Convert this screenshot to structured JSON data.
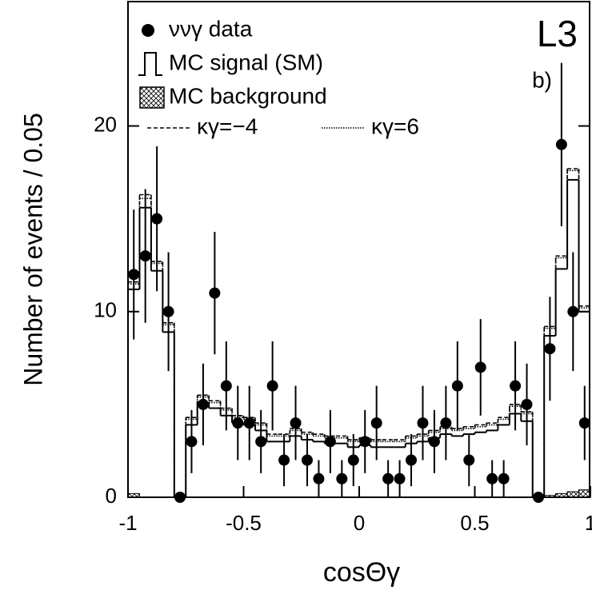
{
  "chart_data": {
    "type": "histogram",
    "xlabel": "cosΘγ",
    "ylabel": "Number of events / 0.05",
    "annotations": [
      "L3",
      "b)"
    ],
    "bins": [
      -1,
      -0.95,
      -0.9,
      -0.85,
      -0.8,
      -0.75,
      -0.7,
      -0.65,
      -0.6,
      -0.55,
      -0.5,
      -0.45,
      -0.4,
      -0.35,
      -0.3,
      -0.25,
      -0.2,
      -0.15,
      -0.1,
      -0.05,
      0,
      0.05,
      0.1,
      0.15,
      0.2,
      0.25,
      0.3,
      0.35,
      0.4,
      0.45,
      0.5,
      0.55,
      0.6,
      0.65,
      0.7,
      0.75,
      0.8,
      0.85,
      0.9,
      0.95,
      1
    ],
    "xlim": [
      -1,
      1
    ],
    "ylim": [
      0,
      26.7
    ],
    "xticks": [
      -1,
      -0.5,
      0,
      0.5,
      1
    ],
    "yticks": [
      0,
      10,
      20
    ],
    "series": [
      {
        "name": "ννγ data",
        "style": "points",
        "color": "#000000",
        "values": [
          12,
          13,
          15,
          10,
          0,
          3,
          5,
          11,
          6,
          4,
          4,
          3,
          6,
          2,
          4,
          2,
          1,
          3,
          1,
          2,
          3,
          4,
          1,
          1,
          2,
          4,
          3,
          4,
          6,
          2,
          7,
          1,
          1,
          6,
          5,
          0,
          8,
          19,
          10,
          4
        ],
        "errors": [
          3.5,
          3.6,
          3.9,
          3.2,
          0,
          1.7,
          2.2,
          3.3,
          2.4,
          2,
          2,
          1.7,
          2.4,
          1.4,
          2,
          1.4,
          1,
          1.7,
          1,
          1.4,
          1.7,
          2,
          1,
          1,
          1.4,
          2,
          1.7,
          2,
          2.4,
          1.4,
          2.6,
          1,
          1,
          2.4,
          2.2,
          0,
          2.8,
          4.4,
          3.2,
          2
        ]
      },
      {
        "name": "MC signal (SM)",
        "style": "step",
        "color": "#000000",
        "values": [
          11.2,
          15.6,
          12.2,
          8.9,
          0,
          3.9,
          5.1,
          4.8,
          4.4,
          4.0,
          3.9,
          3.6,
          3.0,
          3.0,
          3.3,
          3.1,
          3.0,
          2.9,
          2.9,
          2.7,
          2.8,
          2.7,
          2.7,
          2.7,
          2.9,
          3.0,
          3.2,
          3.4,
          3.3,
          3.4,
          3.5,
          3.6,
          3.9,
          4.5,
          4.1,
          0,
          8.7,
          12.3,
          17.1,
          10.0
        ]
      },
      {
        "name": "MC background",
        "style": "hatched",
        "color": "#000000",
        "values": [
          0.2,
          0,
          0,
          0,
          0,
          0,
          0,
          0,
          0,
          0,
          0,
          0,
          0,
          0,
          0,
          0,
          0,
          0,
          0,
          0,
          0,
          0,
          0,
          0,
          0,
          0,
          0,
          0,
          0,
          0,
          0,
          0,
          0,
          0,
          0,
          0,
          0.1,
          0.2,
          0.3,
          0.4
        ]
      },
      {
        "name": "κγ=−4",
        "style": "dashed",
        "color": "#000000",
        "values": [
          11.6,
          16.3,
          12.7,
          9.4,
          0,
          4.3,
          5.5,
          5.2,
          4.8,
          4.4,
          4.3,
          4.0,
          3.4,
          3.4,
          3.7,
          3.5,
          3.4,
          3.3,
          3.3,
          3.1,
          3.2,
          3.1,
          3.1,
          3.1,
          3.3,
          3.4,
          3.6,
          3.8,
          3.7,
          3.8,
          3.9,
          4.0,
          4.3,
          5.0,
          4.6,
          0,
          9.2,
          13.0,
          17.7,
          10.3
        ]
      },
      {
        "name": "κγ=6",
        "style": "dotted",
        "color": "#000000",
        "values": [
          11.5,
          16.1,
          12.6,
          9.3,
          0,
          4.2,
          5.4,
          5.1,
          4.7,
          4.3,
          4.2,
          3.9,
          3.3,
          3.3,
          3.6,
          3.4,
          3.3,
          3.2,
          3.2,
          3.0,
          3.1,
          3.0,
          3.0,
          3.0,
          3.2,
          3.3,
          3.5,
          3.7,
          3.6,
          3.7,
          3.8,
          3.9,
          4.2,
          4.9,
          4.5,
          0,
          9.1,
          12.9,
          17.6,
          10.2
        ]
      }
    ]
  }
}
